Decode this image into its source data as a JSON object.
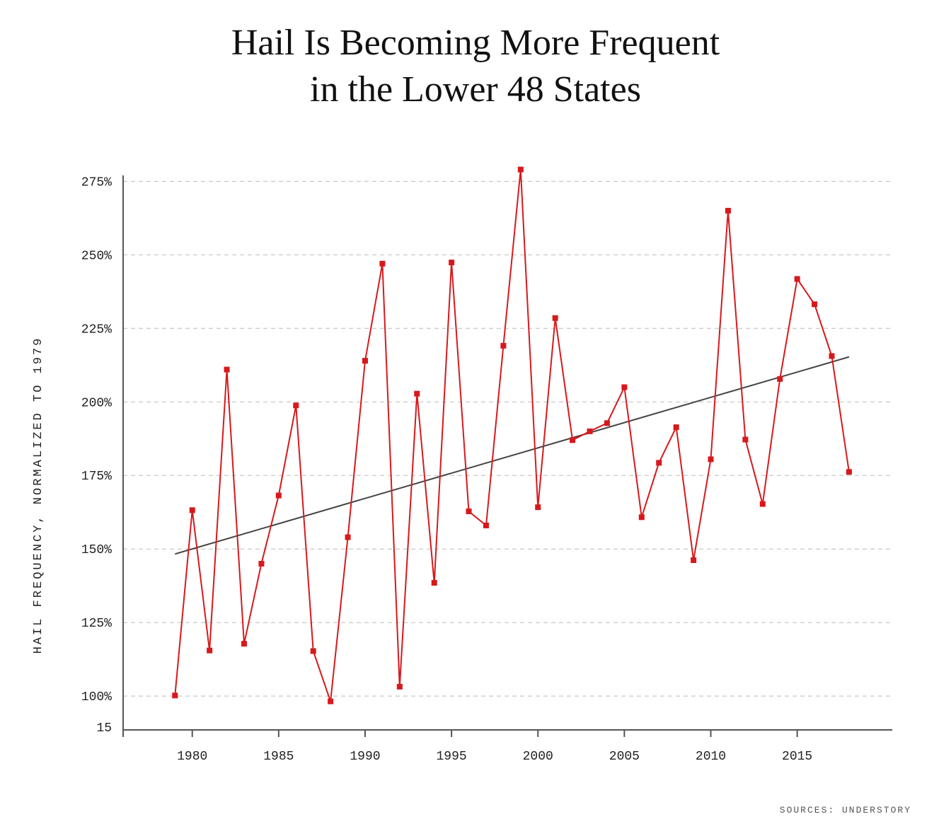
{
  "chart_data": {
    "type": "line",
    "title_lines": [
      "Hail Is Becoming More Frequent",
      "in the Lower 48 States"
    ],
    "ylabel": "HAIL FREQUENCY, NORMALIZED TO 1979",
    "xlabel": "",
    "source": "SOURCES: UNDERSTORY",
    "y_ticks": [
      {
        "value": 100,
        "label": "100%"
      },
      {
        "value": 125,
        "label": "125%"
      },
      {
        "value": 150,
        "label": "150%"
      },
      {
        "value": 175,
        "label": "175%"
      },
      {
        "value": 200,
        "label": "200%"
      },
      {
        "value": 225,
        "label": "225%"
      },
      {
        "value": 250,
        "label": "250%"
      },
      {
        "value": 275,
        "label": "275%"
      }
    ],
    "y_axis_floor_label": "15",
    "x_ticks": [
      1980,
      1985,
      1990,
      1995,
      2000,
      2005,
      2010,
      2015
    ],
    "xlim": [
      1976,
      2020.5
    ],
    "ylim": [
      88.5,
      277
    ],
    "grid": "horizontal dashed",
    "x": [
      1979,
      1980,
      1981,
      1982,
      1983,
      1984,
      1985,
      1986,
      1987,
      1988,
      1989,
      1990,
      1991,
      1992,
      1993,
      1994,
      1995,
      1996,
      1997,
      1998,
      1999,
      2000,
      2001,
      2002,
      2003,
      2004,
      2005,
      2006,
      2007,
      2008,
      2009,
      2010,
      2011,
      2012,
      2013,
      2014,
      2015,
      2016,
      2017,
      2018
    ],
    "series": [
      {
        "values": [
          100.2,
          163.2,
          115.5,
          211.0,
          117.8,
          145.0,
          168.2,
          198.8,
          115.3,
          98.2,
          154.0,
          214.0,
          247.0,
          103.2,
          202.8,
          138.5,
          247.4,
          162.8,
          158.0,
          219.1,
          279.0,
          164.2,
          228.5,
          187.0,
          190.0,
          192.8,
          205.0,
          160.8,
          179.3,
          191.4,
          146.2,
          180.5,
          265.0,
          187.2,
          165.3,
          207.8,
          241.8,
          233.2,
          215.6,
          176.2
        ],
        "color": "#d7191c",
        "marker": "square"
      }
    ],
    "trend": {
      "x": [
        1979,
        2018
      ],
      "values": [
        148.3,
        215.3
      ],
      "color": "#444444"
    }
  }
}
